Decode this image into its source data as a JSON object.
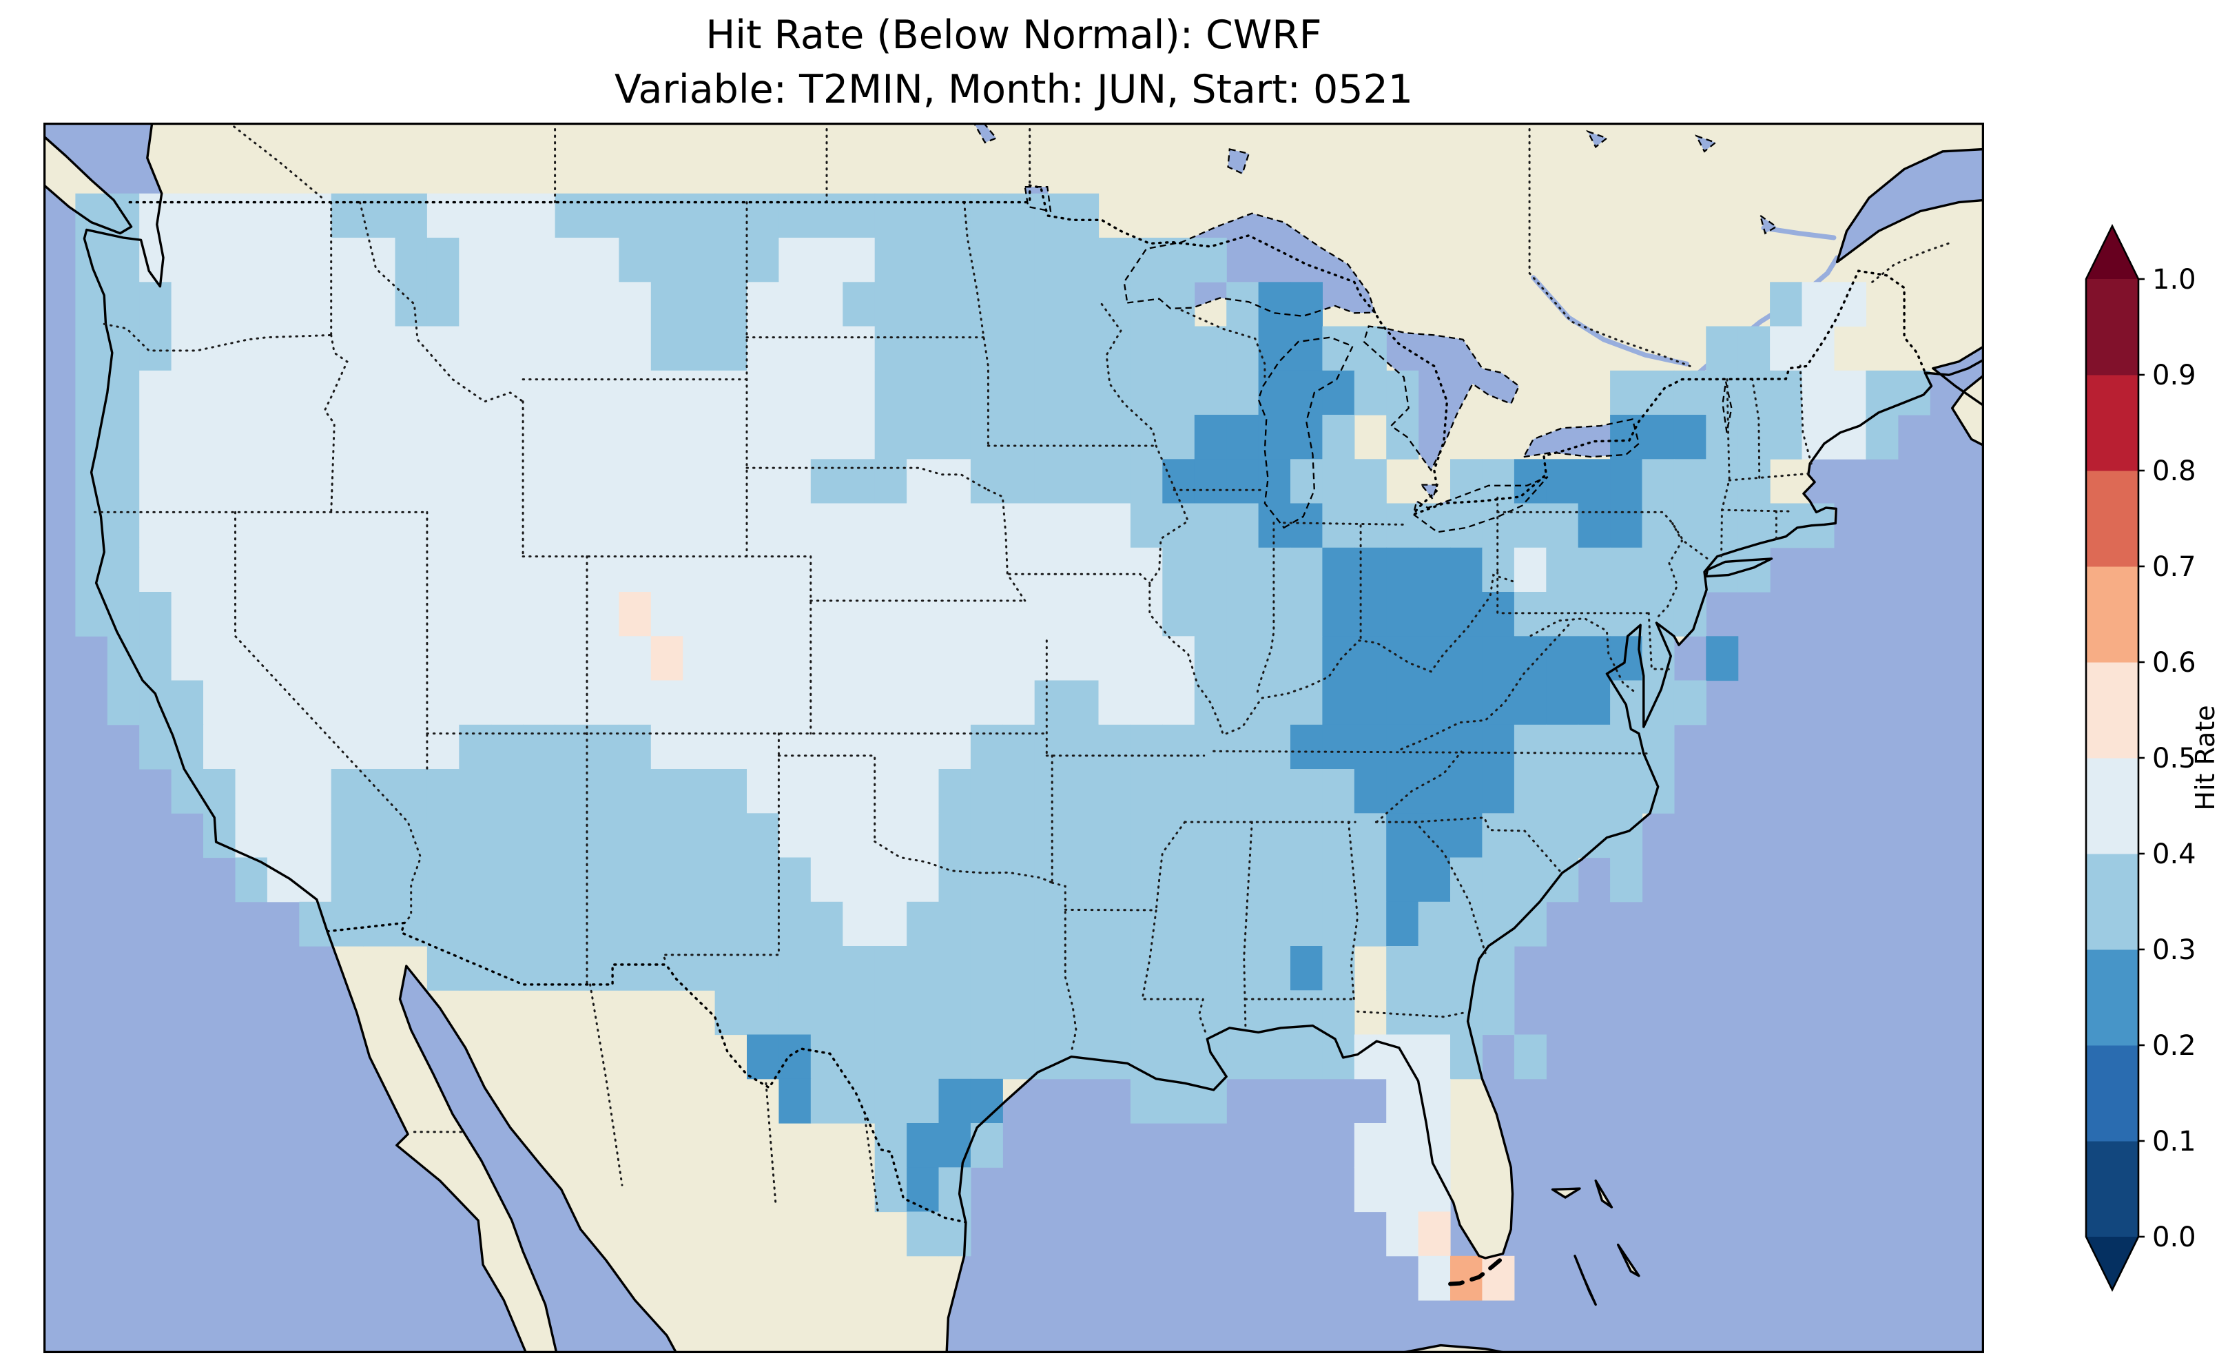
{
  "title": {
    "line1": "Hit Rate (Below Normal): CWRF",
    "line2": "Variable: T2MIN, Month: JUN, Start: 0521"
  },
  "colorbar": {
    "label": "Hit Rate",
    "ticks": [
      "0.0",
      "0.1",
      "0.2",
      "0.3",
      "0.4",
      "0.5",
      "0.6",
      "0.7",
      "0.8",
      "0.9",
      "1.0"
    ],
    "segment_colors_bottom_to_top": [
      "#12477e",
      "#2a6cb0",
      "#4795c8",
      "#9dcbe2",
      "#e1edf4",
      "#fbe4d6",
      "#f7ad85",
      "#dd6a55",
      "#b91f32",
      "#81112b"
    ],
    "under_color": "#053061",
    "over_color": "#67001f"
  },
  "map_colors": {
    "ocean": "#98aedd",
    "land": "#efecd8",
    "coastline": "#000000",
    "border": "#1a1a1a"
  },
  "chart_data": {
    "type": "heatmap",
    "title": "Hit Rate (Below Normal): CWRF",
    "subtitle": "Variable: T2MIN, Month: JUN, Start: 0521",
    "model": "CWRF",
    "category": "Below Normal",
    "variable": "T2MIN",
    "month": "JUN",
    "start": "0521",
    "colorbar_label": "Hit Rate",
    "colorbar_range": [
      0.0,
      1.0
    ],
    "colorbar_step": 0.1,
    "map_extent": {
      "lon": [
        -126.0,
        -65.3
      ],
      "lat": [
        23.0,
        50.8
      ]
    },
    "value_colors": {
      "2": "#4795c8",
      "3": "#9dcbe2",
      "4": "#e1edf4",
      "5": "#fbe4d6",
      "6": "#f7ad85"
    },
    "grid": {
      "description": "Gridded hit-rate field over CONUS; each char is one ~1-degree cell; '.'=no data; digits map to hit-rate bin midpoints via legend",
      "lon_min": -125,
      "lon_max": -67,
      "lat_top": 49.2,
      "lat_bottom": 24.2,
      "ncols": 58,
      "nrows": 25,
      "legend": {
        ".": null,
        "2": 0.25,
        "3": 0.35,
        "4": 0.45,
        "5": 0.55,
        "6": 0.65
      },
      "rows": [
        "33444444333444433333333333333333..........................",
        "334444444433444443333344433333333333......................",
        "33344444443344444433344433333333333.322..............344..",
        "333444444444444444333444433333333333322330.........33440..",
        "334444444444444444444444433333333333322233......3333334433",
        "3344444444444444444444444333333333322223 3......2223334430",
        "33444444444444444444444333443333332222333..332222333300..",
        "334444444444444444444444444444444333322333333332233333300",
        "33444444444444444444444444444444443333322222343333333.....",
        "333444444444444445444444444444444433333222222333333.......",
        ".3344444444444444454444444444444444333322222222223 2......",
        ".33344444444444444444444444444334443333222222222333.......",
        "..334444444433333344444444443333333333222222233333........",
        "...33444333333333333344444433333333333332222233333........",
        "....3444333333333333334444433333333333333222333330........",
        ".....344333333333333333444433333333333333223333 3.........",
        ".......3333333333333333344333333333333333233330...........",
        "...........33333333333333333333333333323 3333.............",
        "....................33333333333333333333 3333.............",
        ".....................22333333333333333334443 3............",
        "......................2333322....333.....44...............",
        ".........................3223...........444..............",
        ".........................323............444..............",
        "..........................33.............45..............",
        "..........................................465............."
      ]
    }
  }
}
